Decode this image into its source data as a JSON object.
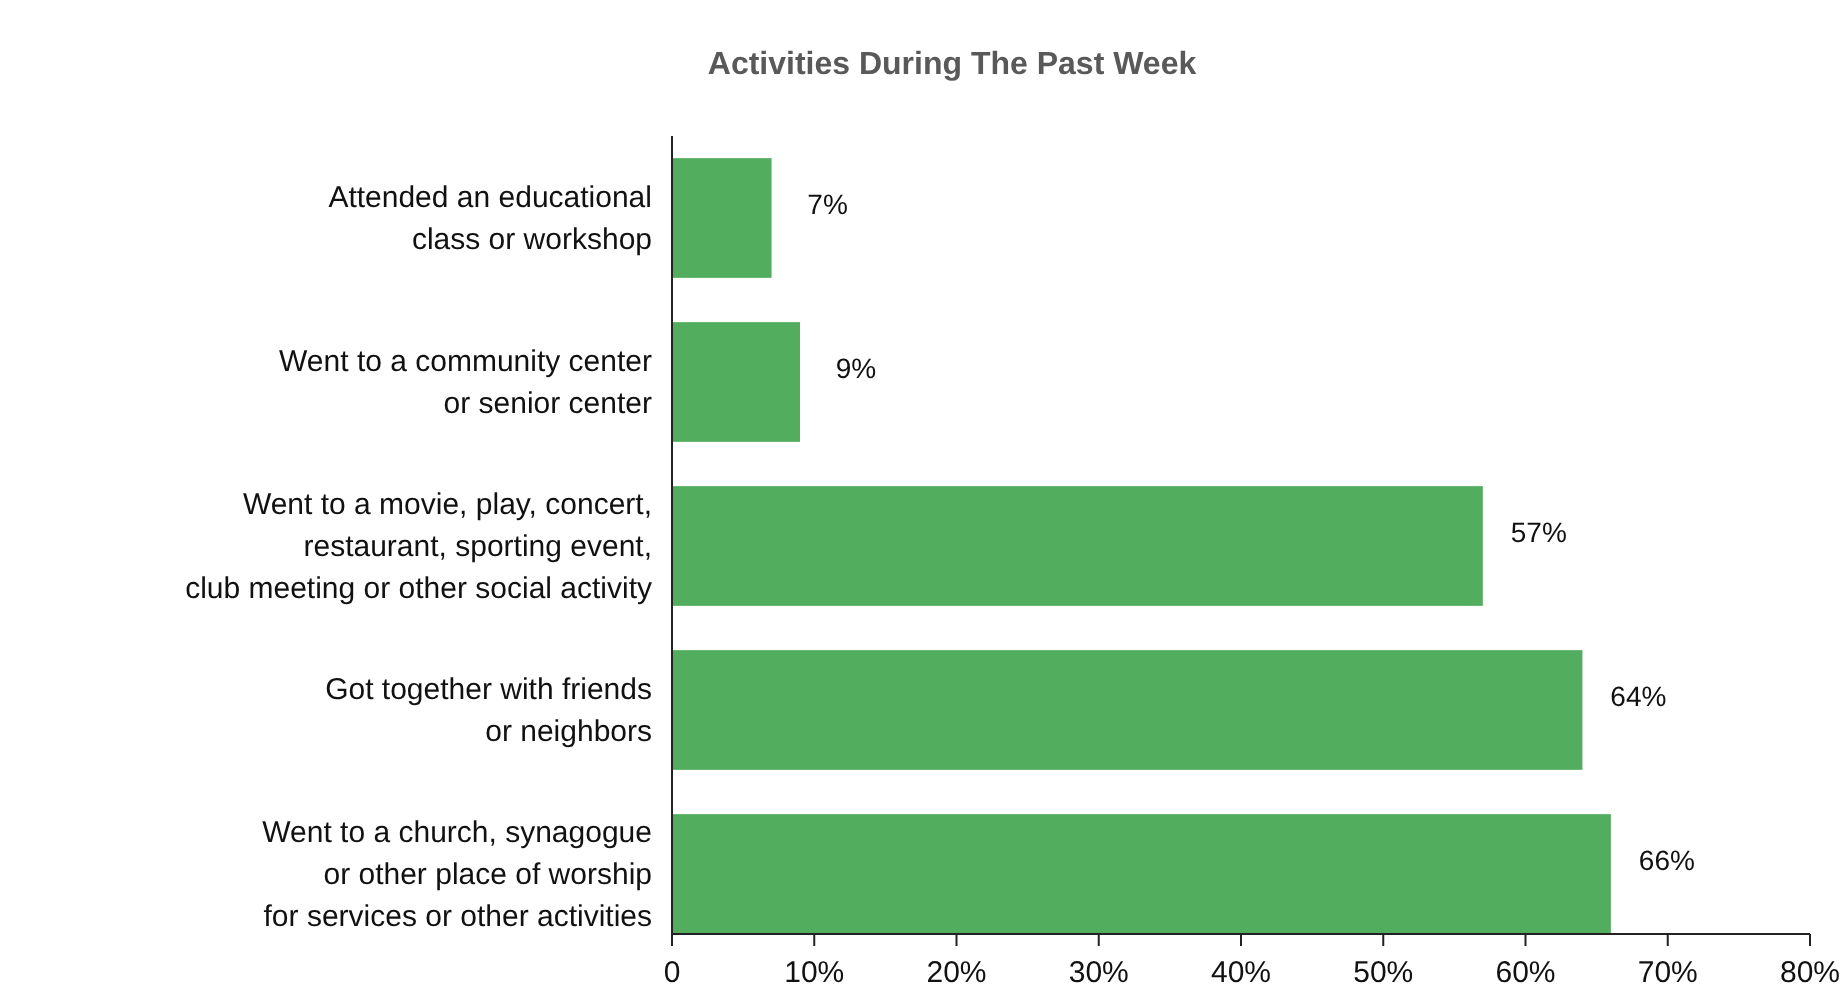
{
  "chart_data": {
    "type": "bar",
    "orientation": "horizontal",
    "title": "Activities During The Past Week",
    "categories": [
      "Attended an educational\nclass or workshop",
      "Went to a community center\nor senior center",
      "Went to a movie, play, concert,\nrestaurant, sporting event,\nclub meeting or other social activity",
      "Got together with friends\nor neighbors",
      "Went to a church, synagogue\nor other place of worship\nfor services or other activities"
    ],
    "values": [
      7,
      9,
      57,
      64,
      66
    ],
    "value_labels": [
      "7%",
      "9%",
      "57%",
      "64%",
      "66%"
    ],
    "color": "#52ad5f",
    "xlim": [
      0,
      80
    ],
    "xticks": [
      0,
      {
        "value": 10,
        "label": "10%"
      },
      {
        "value": 20,
        "label": "20%"
      },
      {
        "value": 30,
        "label": "30%"
      },
      {
        "value": 40,
        "label": "40%"
      },
      {
        "value": 50,
        "label": "50%"
      },
      {
        "value": 60,
        "label": "60%"
      },
      {
        "value": 70,
        "label": "70%"
      },
      {
        "value": 80,
        "label": "80%"
      }
    ],
    "grid": false
  }
}
